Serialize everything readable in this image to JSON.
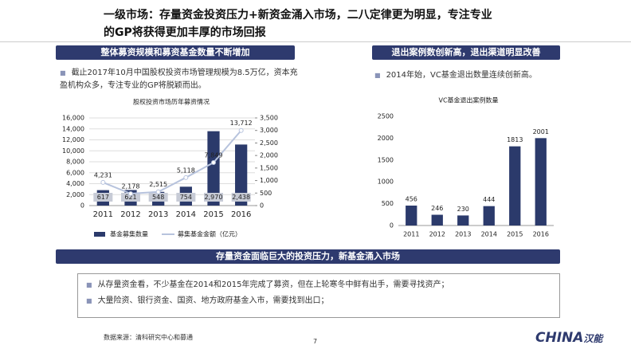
{
  "header": {
    "title_lines": [
      "一级市场：存量资金投资压力+新资金涌入市场，二八定律更为明显，专注专业",
      "的GP将获得更加丰厚的市场回报"
    ]
  },
  "left": {
    "banner": "整体募资规模和募资基金数量不断增加",
    "bullet": "截止2017年10月中国股权投资市场管理规模为8.5万亿，资本充盈机构众多，专注专业的GP将脱颖而出。"
  },
  "right": {
    "banner": "退出案例数创新高，退出渠道明显改善",
    "bullet": "2014年始，VC基金退出数量连续创新高。"
  },
  "bottom": {
    "banner": "存量资金面临巨大的投资压力，新基金涌入市场",
    "bullets": [
      "从存量资金看，不少基金在2014和2015年完成了募资，但在上轮寒冬中鲜有出手，需要寻找资产；",
      "大量险资、银行资金、国资、地方政府基金入市，需要找到出口；"
    ]
  },
  "footer": {
    "source": "数据来源：清科研究中心和募通",
    "page": "7",
    "logo": "CHINA",
    "logo_cn": "汉能"
  },
  "chart_data": [
    {
      "type": "bar-line",
      "title": "股权投资市场历年募资情况",
      "categories": [
        "2011",
        "2012",
        "2013",
        "2014",
        "2015",
        "2016"
      ],
      "series": [
        {
          "name": "基金募集数量",
          "type": "bar",
          "axis": "y2",
          "color": "#2b3a6b",
          "values": [
            617,
            621,
            548,
            754,
            2970,
            2438
          ],
          "value_labels": [
            "617",
            "621",
            "548",
            "754",
            "2,970",
            "2,438"
          ]
        },
        {
          "name": "募集基金金额（亿元）",
          "type": "line",
          "axis": "y",
          "color": "#b7c3dd",
          "values": [
            4231,
            2178,
            2515,
            5118,
            7849,
            13712
          ],
          "value_labels": [
            "4,231",
            "2,178",
            "2,515",
            "5,118",
            "7,849",
            "13,712"
          ]
        }
      ],
      "ylim": [
        0,
        16000
      ],
      "yticks": [
        0,
        {
          "value": 2000,
          "label": "2,000"
        },
        {
          "value": 4000,
          "label": "4,000"
        },
        {
          "value": 6000,
          "label": "6,000"
        },
        {
          "value": 8000,
          "label": "8,000"
        },
        {
          "value": 10000,
          "label": "10,000"
        },
        {
          "value": 12000,
          "label": "12,000"
        },
        {
          "value": 14000,
          "label": "14,000"
        },
        {
          "value": 16000,
          "label": "16,000"
        }
      ],
      "y2lim": [
        0,
        3500
      ],
      "y2ticks": [
        0,
        500,
        {
          "value": 1000,
          "label": "1,000"
        },
        {
          "value": 1500,
          "label": "1,500"
        },
        {
          "value": 2000,
          "label": "2,000"
        },
        {
          "value": 2500,
          "label": "2,500"
        },
        {
          "value": 3000,
          "label": "3,000"
        },
        {
          "value": 3500,
          "label": "3,500"
        }
      ],
      "grid": true
    },
    {
      "type": "bar",
      "title": "VC基金退出案例数量",
      "categories": [
        "2011",
        "2012",
        "2013",
        "2014",
        "2015",
        "2016"
      ],
      "values": [
        456,
        246,
        230,
        444,
        1813,
        2001
      ],
      "color": "#2b3a6b",
      "ylim": [
        0,
        2500
      ],
      "yticks": [
        0,
        500,
        1000,
        1500,
        2000,
        2500
      ],
      "grid": false
    }
  ]
}
